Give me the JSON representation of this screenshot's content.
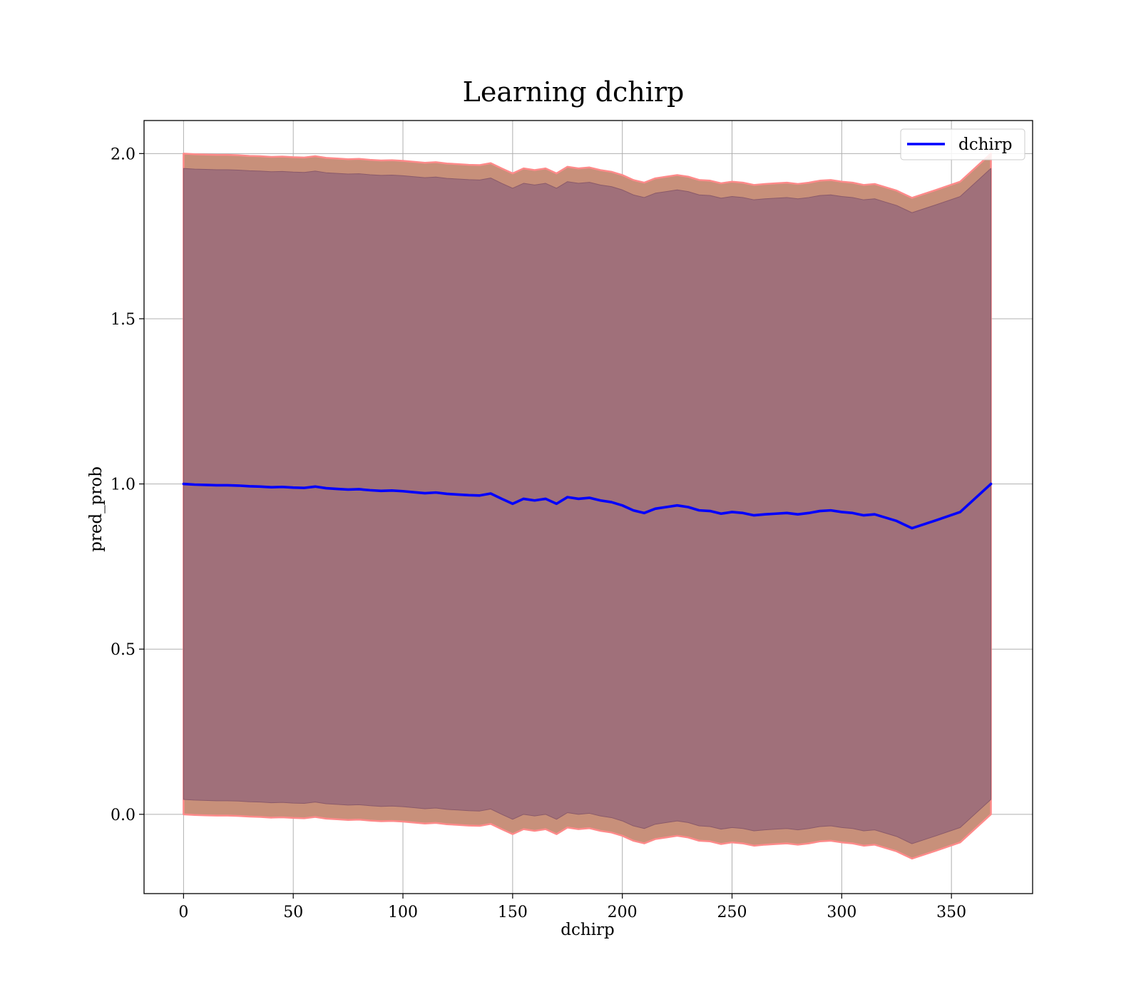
{
  "chart_data": {
    "type": "line",
    "title": "Learning dchirp",
    "xlabel": "dchirp",
    "ylabel": "pred_prob",
    "xlim": [
      -18,
      387
    ],
    "ylim": [
      -0.24,
      2.1
    ],
    "x_ticks": [
      0,
      50,
      100,
      150,
      200,
      250,
      300,
      350
    ],
    "y_ticks": [
      0.0,
      0.5,
      1.0,
      1.5,
      2.0
    ],
    "x_tick_labels": [
      "0",
      "50",
      "100",
      "150",
      "200",
      "250",
      "300",
      "350"
    ],
    "y_tick_labels": [
      "0.0",
      "0.5",
      "1.0",
      "1.5",
      "2.0"
    ],
    "grid": true,
    "legend_position": "top-right",
    "colors": {
      "line": "#0000ff",
      "outer_band": "#c8907a",
      "outer_band_edge": "#ff8a8a",
      "inner_band": "#a0707a",
      "grid": "#b0b0b0"
    },
    "series": [
      {
        "name": "dchirp",
        "x": [
          0,
          5,
          10,
          15,
          20,
          25,
          30,
          35,
          40,
          45,
          50,
          55,
          60,
          65,
          70,
          75,
          80,
          85,
          90,
          95,
          100,
          105,
          110,
          115,
          120,
          125,
          130,
          135,
          140,
          145,
          150,
          155,
          160,
          165,
          170,
          175,
          180,
          185,
          190,
          195,
          200,
          205,
          210,
          215,
          220,
          225,
          230,
          235,
          240,
          245,
          250,
          255,
          260,
          265,
          270,
          275,
          280,
          285,
          290,
          295,
          300,
          305,
          310,
          315,
          320,
          325,
          332,
          343,
          354,
          368
        ],
        "y": [
          1.0,
          0.998,
          0.997,
          0.996,
          0.996,
          0.995,
          0.993,
          0.992,
          0.99,
          0.991,
          0.989,
          0.988,
          0.992,
          0.987,
          0.985,
          0.983,
          0.984,
          0.981,
          0.979,
          0.98,
          0.978,
          0.975,
          0.972,
          0.974,
          0.97,
          0.968,
          0.966,
          0.965,
          0.971,
          0.955,
          0.94,
          0.955,
          0.95,
          0.955,
          0.94,
          0.96,
          0.955,
          0.958,
          0.95,
          0.945,
          0.935,
          0.92,
          0.912,
          0.925,
          0.93,
          0.935,
          0.93,
          0.92,
          0.918,
          0.91,
          0.915,
          0.912,
          0.905,
          0.908,
          0.91,
          0.912,
          0.908,
          0.912,
          0.918,
          0.92,
          0.915,
          0.912,
          0.905,
          0.908,
          0.898,
          0.888,
          0.866,
          0.89,
          0.915,
          1.0
        ]
      }
    ],
    "bands": [
      {
        "x": [
          0,
          5,
          10,
          15,
          20,
          25,
          30,
          35,
          40,
          45,
          50,
          55,
          60,
          65,
          70,
          75,
          80,
          85,
          90,
          95,
          100,
          105,
          110,
          115,
          120,
          125,
          130,
          135,
          140,
          145,
          150,
          155,
          160,
          165,
          170,
          175,
          180,
          185,
          190,
          195,
          200,
          205,
          210,
          215,
          220,
          225,
          230,
          235,
          240,
          245,
          250,
          255,
          260,
          265,
          270,
          275,
          280,
          285,
          290,
          295,
          300,
          305,
          310,
          315,
          320,
          325,
          332,
          343,
          354,
          368
        ],
        "upper": [
          2.0,
          1.998,
          1.997,
          1.996,
          1.996,
          1.995,
          1.993,
          1.992,
          1.99,
          1.991,
          1.989,
          1.988,
          1.992,
          1.987,
          1.985,
          1.983,
          1.984,
          1.981,
          1.979,
          1.98,
          1.978,
          1.975,
          1.972,
          1.974,
          1.97,
          1.968,
          1.966,
          1.965,
          1.971,
          1.955,
          1.94,
          1.955,
          1.95,
          1.955,
          1.94,
          1.96,
          1.955,
          1.958,
          1.95,
          1.945,
          1.935,
          1.92,
          1.912,
          1.925,
          1.93,
          1.935,
          1.93,
          1.92,
          1.918,
          1.91,
          1.915,
          1.912,
          1.905,
          1.908,
          1.91,
          1.912,
          1.908,
          1.912,
          1.918,
          1.92,
          1.915,
          1.912,
          1.905,
          1.908,
          1.898,
          1.888,
          1.866,
          1.89,
          1.915,
          2.0
        ],
        "lower": [
          0.0,
          -0.002,
          -0.003,
          -0.004,
          -0.004,
          -0.005,
          -0.007,
          -0.008,
          -0.01,
          -0.009,
          -0.011,
          -0.012,
          -0.008,
          -0.013,
          -0.015,
          -0.017,
          -0.016,
          -0.019,
          -0.021,
          -0.02,
          -0.022,
          -0.025,
          -0.028,
          -0.026,
          -0.03,
          -0.032,
          -0.034,
          -0.035,
          -0.029,
          -0.045,
          -0.06,
          -0.045,
          -0.05,
          -0.045,
          -0.06,
          -0.04,
          -0.045,
          -0.042,
          -0.05,
          -0.055,
          -0.065,
          -0.08,
          -0.088,
          -0.075,
          -0.07,
          -0.065,
          -0.07,
          -0.08,
          -0.082,
          -0.09,
          -0.085,
          -0.088,
          -0.095,
          -0.092,
          -0.09,
          -0.088,
          -0.092,
          -0.088,
          -0.082,
          -0.08,
          -0.085,
          -0.088,
          -0.095,
          -0.092,
          -0.102,
          -0.112,
          -0.134,
          -0.11,
          -0.085,
          0.0
        ]
      },
      {
        "x": [
          0,
          5,
          10,
          15,
          20,
          25,
          30,
          35,
          40,
          45,
          50,
          55,
          60,
          65,
          70,
          75,
          80,
          85,
          90,
          95,
          100,
          105,
          110,
          115,
          120,
          125,
          130,
          135,
          140,
          145,
          150,
          155,
          160,
          165,
          170,
          175,
          180,
          185,
          190,
          195,
          200,
          205,
          210,
          215,
          220,
          225,
          230,
          235,
          240,
          245,
          250,
          255,
          260,
          265,
          270,
          275,
          280,
          285,
          290,
          295,
          300,
          305,
          310,
          315,
          320,
          325,
          332,
          343,
          354,
          368
        ],
        "upper": [
          1.955,
          1.953,
          1.952,
          1.951,
          1.951,
          1.95,
          1.948,
          1.947,
          1.945,
          1.946,
          1.944,
          1.943,
          1.947,
          1.942,
          1.94,
          1.938,
          1.939,
          1.936,
          1.934,
          1.935,
          1.933,
          1.93,
          1.927,
          1.929,
          1.925,
          1.923,
          1.921,
          1.92,
          1.926,
          1.91,
          1.895,
          1.91,
          1.905,
          1.91,
          1.895,
          1.915,
          1.91,
          1.913,
          1.905,
          1.9,
          1.89,
          1.875,
          1.867,
          1.88,
          1.885,
          1.89,
          1.885,
          1.875,
          1.873,
          1.865,
          1.87,
          1.867,
          1.86,
          1.863,
          1.865,
          1.867,
          1.863,
          1.867,
          1.873,
          1.875,
          1.87,
          1.867,
          1.86,
          1.863,
          1.853,
          1.843,
          1.821,
          1.845,
          1.87,
          1.955
        ],
        "lower": [
          0.045,
          0.043,
          0.042,
          0.041,
          0.041,
          0.04,
          0.038,
          0.037,
          0.035,
          0.036,
          0.034,
          0.033,
          0.037,
          0.032,
          0.03,
          0.028,
          0.029,
          0.026,
          0.024,
          0.025,
          0.023,
          0.02,
          0.017,
          0.019,
          0.015,
          0.013,
          0.011,
          0.01,
          0.016,
          0.0,
          -0.015,
          0.0,
          -0.005,
          0.0,
          -0.015,
          0.005,
          0.0,
          0.003,
          -0.005,
          -0.01,
          -0.02,
          -0.035,
          -0.043,
          -0.03,
          -0.025,
          -0.02,
          -0.025,
          -0.035,
          -0.037,
          -0.045,
          -0.04,
          -0.043,
          -0.05,
          -0.047,
          -0.045,
          -0.043,
          -0.047,
          -0.043,
          -0.037,
          -0.035,
          -0.04,
          -0.043,
          -0.05,
          -0.047,
          -0.057,
          -0.067,
          -0.089,
          -0.065,
          -0.04,
          0.045
        ]
      }
    ]
  }
}
